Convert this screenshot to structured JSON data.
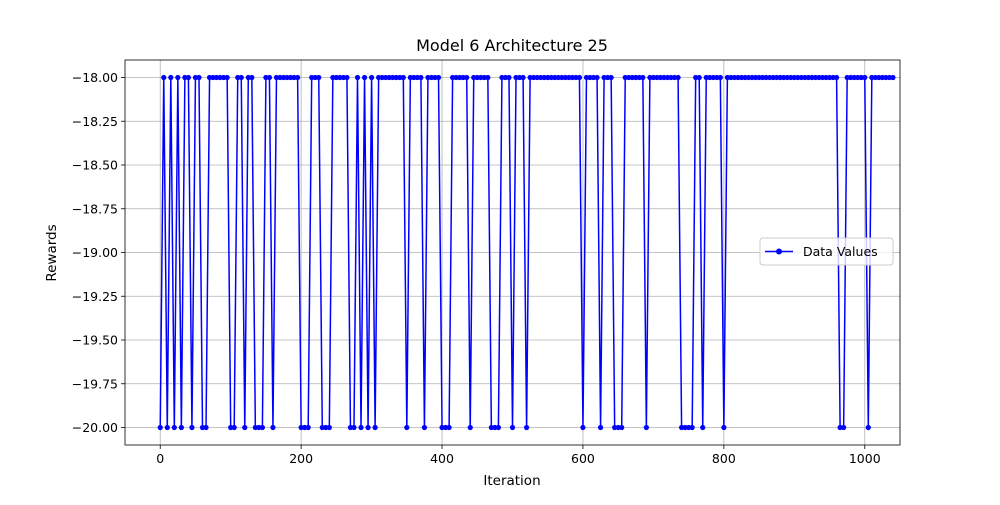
{
  "chart_data": {
    "type": "line",
    "title": "Model 6 Architecture 25",
    "xlabel": "Iteration",
    "ylabel": "Rewards",
    "xlim": [
      -50,
      1050
    ],
    "ylim": [
      -20.1,
      -17.9
    ],
    "xticks": [
      0,
      200,
      400,
      600,
      800,
      1000
    ],
    "xtick_labels": [
      "0",
      "200",
      "400",
      "600",
      "800",
      "1000"
    ],
    "yticks": [
      -18.0,
      -18.25,
      -18.5,
      -18.75,
      -19.0,
      -19.25,
      -19.5,
      -19.75,
      -20.0
    ],
    "ytick_labels": [
      "−18.00",
      "−18.25",
      "−18.50",
      "−18.75",
      "−19.00",
      "−19.25",
      "−19.50",
      "−19.75",
      "−20.00"
    ],
    "grid": true,
    "legend_position": "center-right",
    "series": [
      {
        "name": "Data Values",
        "color": "#0000ff",
        "marker": "circle",
        "x_start": 0,
        "x_step": 5,
        "values": [
          -20,
          -18,
          -20,
          -18,
          -20,
          -18,
          -20,
          -18,
          -18,
          -20,
          -18,
          -18,
          -20,
          -20,
          -18,
          -18,
          -18,
          -18,
          -18,
          -18,
          -20,
          -20,
          -18,
          -18,
          -20,
          -18,
          -18,
          -20,
          -20,
          -20,
          -18,
          -18,
          -20,
          -18,
          -18,
          -18,
          -18,
          -18,
          -18,
          -18,
          -20,
          -20,
          -20,
          -18,
          -18,
          -18,
          -20,
          -20,
          -20,
          -18,
          -18,
          -18,
          -18,
          -18,
          -20,
          -20,
          -18,
          -20,
          -18,
          -20,
          -18,
          -20,
          -18,
          -18,
          -18,
          -18,
          -18,
          -18,
          -18,
          -18,
          -20,
          -18,
          -18,
          -18,
          -18,
          -20,
          -18,
          -18,
          -18,
          -18,
          -20,
          -20,
          -20,
          -18,
          -18,
          -18,
          -18,
          -18,
          -20,
          -18,
          -18,
          -18,
          -18,
          -18,
          -20,
          -20,
          -20,
          -18,
          -18,
          -18,
          -20,
          -18,
          -18,
          -18,
          -20,
          -18,
          -18,
          -18,
          -18,
          -18,
          -18,
          -18,
          -18,
          -18,
          -18,
          -18,
          -18,
          -18,
          -18,
          -18,
          -20,
          -18,
          -18,
          -18,
          -18,
          -20,
          -18,
          -18,
          -18,
          -20,
          -20,
          -20,
          -18,
          -18,
          -18,
          -18,
          -18,
          -18,
          -20,
          -18,
          -18,
          -18,
          -18,
          -18,
          -18,
          -18,
          -18,
          -18,
          -20,
          -20,
          -20,
          -20,
          -18,
          -18,
          -20,
          -18,
          -18,
          -18,
          -18,
          -18,
          -20,
          -18,
          -18,
          -18,
          -18,
          -18,
          -18,
          -18,
          -18,
          -18,
          -18,
          -18,
          -18,
          -18,
          -18,
          -18,
          -18,
          -18,
          -18,
          -18,
          -18,
          -18,
          -18,
          -18,
          -18,
          -18,
          -18,
          -18,
          -18,
          -18,
          -18,
          -18,
          -18,
          -20,
          -20,
          -18,
          -18,
          -18,
          -18,
          -18,
          -18,
          -20,
          -18,
          -18,
          -18,
          -18,
          -18,
          -18,
          -18
        ]
      }
    ]
  }
}
